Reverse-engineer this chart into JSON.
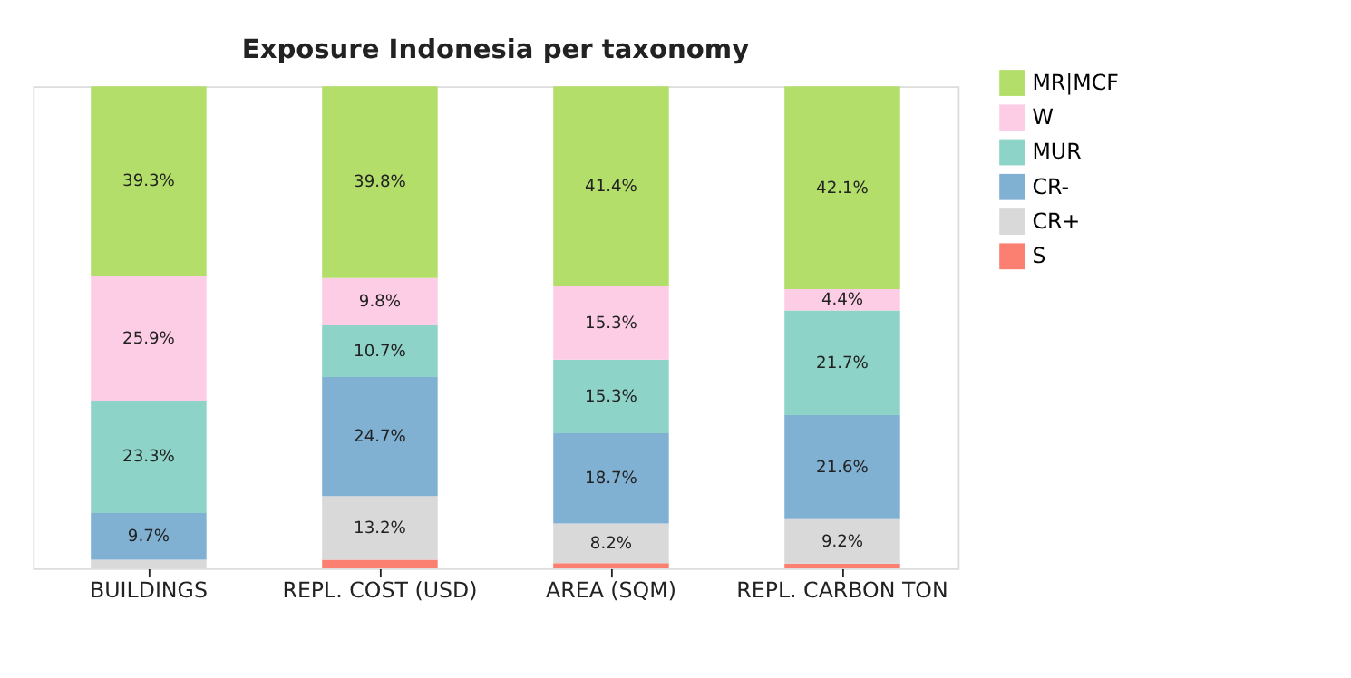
{
  "chart_data": {
    "type": "bar",
    "title": "Exposure Indonesia per taxonomy",
    "categories": [
      "BUILDINGS",
      "REPL. COST (USD)",
      "AREA (SQM)",
      "REPL. CARBON TON"
    ],
    "stacked": true,
    "ylim": [
      0,
      100
    ],
    "tick_labels": "x",
    "legend": "top right",
    "grid": false,
    "series": [
      {
        "name": "S",
        "color": "#fb8072",
        "values": [
          0,
          1.8,
          1.1,
          1.0
        ],
        "value_labels": [
          null,
          null,
          null,
          null
        ]
      },
      {
        "name": "CR+",
        "color": "#d9d9d9",
        "values": [
          1.8,
          13.2,
          8.2,
          9.2
        ],
        "value_labels": [
          null,
          "13.2%",
          "8.2%",
          "9.2%"
        ]
      },
      {
        "name": "CR-",
        "color": "#80b1d3",
        "values": [
          9.7,
          24.7,
          18.7,
          21.6
        ],
        "value_labels": [
          "9.7%",
          "24.7%",
          "18.7%",
          "21.6%"
        ]
      },
      {
        "name": "MUR",
        "color": "#8dd3c7",
        "values": [
          23.3,
          10.7,
          15.3,
          21.7
        ],
        "value_labels": [
          "23.3%",
          "10.7%",
          "15.3%",
          "21.7%"
        ]
      },
      {
        "name": "W",
        "color": "#fccde5",
        "values": [
          25.9,
          9.8,
          15.3,
          4.4
        ],
        "value_labels": [
          "25.9%",
          "9.8%",
          "15.3%",
          "4.4%"
        ]
      },
      {
        "name": "MR|MCF",
        "color": "#b3de69",
        "values": [
          39.3,
          39.8,
          41.4,
          42.1
        ],
        "value_labels": [
          "39.3%",
          "39.8%",
          "41.4%",
          "42.1%"
        ]
      }
    ]
  }
}
